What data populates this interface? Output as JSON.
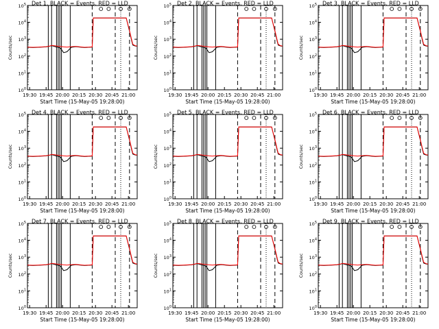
{
  "figure": {
    "panel_titles": [
      "Det  1, BLACK = Events, RED = LLD",
      "Det  2, BLACK = Events, RED = LLD",
      "Det  3, BLACK = Events, RED = LLD",
      "Det  4, BLACK = Events, RED = LLD",
      "Det  5, BLACK = Events, RED = LLD",
      "Det  6, BLACK = Events, RED = LLD",
      "Det  7, BLACK = Events, RED = LLD",
      "Det  8, BLACK = Events, RED = LLD",
      "Det  9, BLACK = Events, RED = LLD"
    ],
    "xlabel": "Start Time (15-May-05 19:28:00)",
    "ylabel": "Counts/sec",
    "xticks": [
      "19:30",
      "19:45",
      "20:00",
      "20:15",
      "20:30",
      "20:45",
      "21:00"
    ],
    "yticks": [
      "10^0",
      "10^1",
      "10^2",
      "10^3",
      "10^4",
      "10^5"
    ]
  },
  "colors": {
    "events": "#000000",
    "lld": "#ff0000",
    "background": "#ffffff"
  },
  "chart_data": {
    "type": "line",
    "panels": 9,
    "yscale": "log",
    "ylim": [
      1,
      100000
    ],
    "xlim_minutes_after_19_28": [
      0,
      100
    ],
    "x_minutes_after_19_28": [
      0,
      5,
      10,
      17,
      20,
      22,
      26,
      28,
      30,
      33,
      36,
      40,
      44,
      48,
      52,
      56,
      59,
      60,
      62,
      67,
      70,
      74,
      80,
      85,
      90,
      93,
      95,
      96,
      98,
      100
    ],
    "series": [
      {
        "name": "BLACK = Events",
        "color": "#000000",
        "values": [
          330,
          320,
          330,
          350,
          380,
          420,
          350,
          330,
          300,
          160,
          180,
          330,
          360,
          340,
          320,
          330,
          340,
          18000,
          18000,
          18000,
          18000,
          18000,
          18000,
          18000,
          18000,
          3000,
          800,
          450,
          400,
          380
        ]
      },
      {
        "name": "RED = LLD",
        "color": "#ff0000",
        "values": [
          340,
          330,
          340,
          360,
          390,
          430,
          400,
          380,
          370,
          350,
          340,
          360,
          370,
          350,
          330,
          340,
          350,
          18000,
          18000,
          18000,
          18000,
          18000,
          18000,
          18000,
          18000,
          3200,
          900,
          500,
          420,
          390
        ]
      }
    ],
    "vertical_lines_solid_minutes": [
      19,
      22,
      26.5,
      28,
      29.5,
      31,
      39
    ],
    "vertical_lines_dashed_minutes": [
      59,
      80,
      93
    ],
    "vertical_lines_dotted_minutes": [
      85
    ],
    "markers_minutes": [
      67,
      74,
      85,
      93
    ]
  }
}
